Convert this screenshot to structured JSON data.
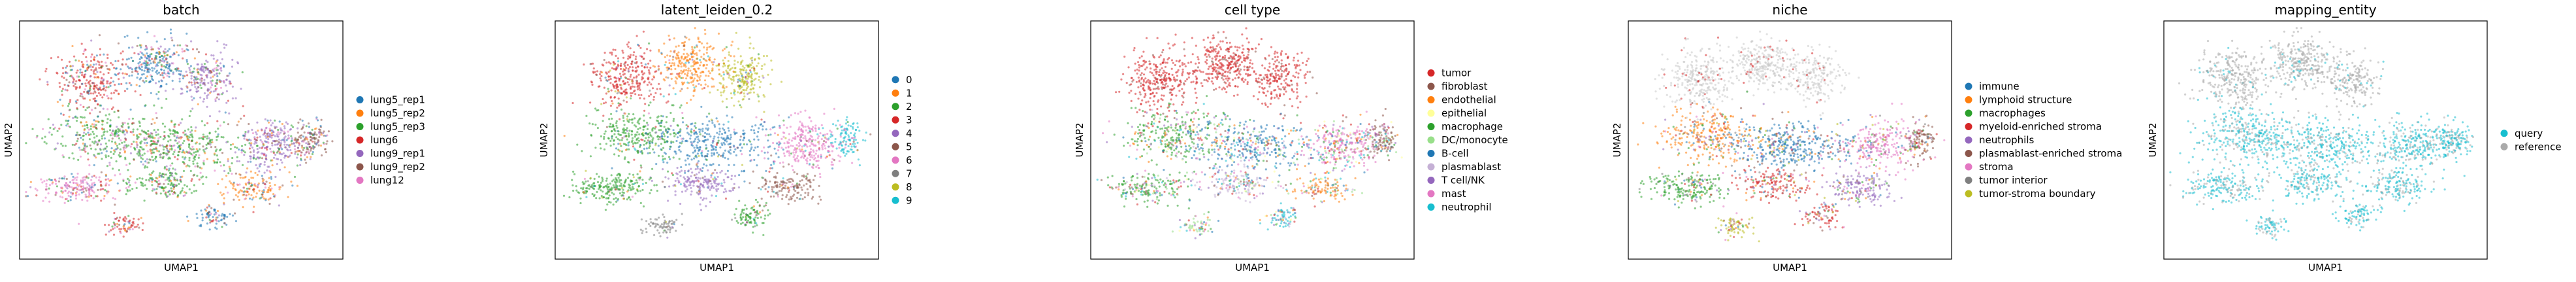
{
  "figure": {
    "marker_color_other": "#c8c8c8",
    "panels": [
      {
        "id": "batch",
        "title": "batch",
        "xlabel": "UMAP1",
        "ylabel": "UMAP2",
        "legend": [
          {
            "label": "lung5_rep1",
            "color": "#1f77b4"
          },
          {
            "label": "lung5_rep2",
            "color": "#ff7f0e"
          },
          {
            "label": "lung5_rep3",
            "color": "#2ca02c"
          },
          {
            "label": "lung6",
            "color": "#d62728"
          },
          {
            "label": "lung9_rep1",
            "color": "#9467bd"
          },
          {
            "label": "lung9_rep2",
            "color": "#8c564b"
          },
          {
            "label": "lung12",
            "color": "#e377c2"
          }
        ]
      },
      {
        "id": "latent_leiden",
        "title": "latent_leiden_0.2",
        "xlabel": "UMAP1",
        "ylabel": "UMAP2",
        "legend": [
          {
            "label": "0",
            "color": "#1f77b4"
          },
          {
            "label": "1",
            "color": "#ff7f0e"
          },
          {
            "label": "2",
            "color": "#2ca02c"
          },
          {
            "label": "3",
            "color": "#d62728"
          },
          {
            "label": "4",
            "color": "#9467bd"
          },
          {
            "label": "5",
            "color": "#8c564b"
          },
          {
            "label": "6",
            "color": "#e377c2"
          },
          {
            "label": "7",
            "color": "#7f7f7f"
          },
          {
            "label": "8",
            "color": "#bcbd22"
          },
          {
            "label": "9",
            "color": "#17becf"
          }
        ]
      },
      {
        "id": "cell_type",
        "title": "cell type",
        "xlabel": "UMAP1",
        "ylabel": "UMAP2",
        "legend": [
          {
            "label": "tumor",
            "color": "#d62728"
          },
          {
            "label": "fibroblast",
            "color": "#8c564b"
          },
          {
            "label": "endothelial",
            "color": "#ff7f0e"
          },
          {
            "label": "epithelial",
            "color": "#ffff99"
          },
          {
            "label": "macrophage",
            "color": "#2ca02c"
          },
          {
            "label": "DC/monocyte",
            "color": "#98df8a"
          },
          {
            "label": "B-cell",
            "color": "#1f77b4"
          },
          {
            "label": "plasmablast",
            "color": "#c5b0d5"
          },
          {
            "label": "T cell/NK",
            "color": "#9467bd"
          },
          {
            "label": "mast",
            "color": "#e377c2"
          },
          {
            "label": "neutrophil",
            "color": "#17becf"
          }
        ]
      },
      {
        "id": "niche",
        "title": "niche",
        "xlabel": "UMAP1",
        "ylabel": "UMAP2",
        "legend": [
          {
            "label": "immune",
            "color": "#1f77b4"
          },
          {
            "label": "lymphoid structure",
            "color": "#ff7f0e"
          },
          {
            "label": "macrophages",
            "color": "#2ca02c"
          },
          {
            "label": "myeloid-enriched stroma",
            "color": "#d62728"
          },
          {
            "label": "neutrophils",
            "color": "#9467bd"
          },
          {
            "label": "plasmablast-enriched stroma",
            "color": "#8c564b"
          },
          {
            "label": "stroma",
            "color": "#e377c2"
          },
          {
            "label": "tumor interior",
            "color": "#7f7f7f"
          },
          {
            "label": "tumor-stroma boundary",
            "color": "#bcbd22"
          }
        ]
      },
      {
        "id": "mapping_entity",
        "title": "mapping_entity",
        "xlabel": "UMAP1",
        "ylabel": "UMAP2",
        "legend": [
          {
            "label": "query",
            "color": "#17becf"
          },
          {
            "label": "reference",
            "color": "#aaaaaa"
          }
        ]
      }
    ]
  },
  "chart_data": [
    {
      "type": "scatter",
      "title": "batch",
      "xlabel": "UMAP1",
      "ylabel": "UMAP2",
      "legend_placement": "right",
      "grid": false,
      "series": [
        {
          "name": "lung5_rep1"
        },
        {
          "name": "lung5_rep2"
        },
        {
          "name": "lung5_rep3"
        },
        {
          "name": "lung6"
        },
        {
          "name": "lung9_rep1"
        },
        {
          "name": "lung9_rep2"
        },
        {
          "name": "lung12"
        }
      ]
    },
    {
      "type": "scatter",
      "title": "latent_leiden_0.2",
      "xlabel": "UMAP1",
      "ylabel": "UMAP2",
      "legend_placement": "right",
      "grid": false,
      "series": [
        {
          "name": "0"
        },
        {
          "name": "1"
        },
        {
          "name": "2"
        },
        {
          "name": "3"
        },
        {
          "name": "4"
        },
        {
          "name": "5"
        },
        {
          "name": "6"
        },
        {
          "name": "7"
        },
        {
          "name": "8"
        },
        {
          "name": "9"
        }
      ]
    },
    {
      "type": "scatter",
      "title": "cell type",
      "xlabel": "UMAP1",
      "ylabel": "UMAP2",
      "legend_placement": "right",
      "grid": false,
      "series": [
        {
          "name": "tumor"
        },
        {
          "name": "fibroblast"
        },
        {
          "name": "endothelial"
        },
        {
          "name": "epithelial"
        },
        {
          "name": "macrophage"
        },
        {
          "name": "DC/monocyte"
        },
        {
          "name": "B-cell"
        },
        {
          "name": "plasmablast"
        },
        {
          "name": "T cell/NK"
        },
        {
          "name": "mast"
        },
        {
          "name": "neutrophil"
        }
      ]
    },
    {
      "type": "scatter",
      "title": "niche",
      "xlabel": "UMAP1",
      "ylabel": "UMAP2",
      "legend_placement": "right",
      "grid": false,
      "series": [
        {
          "name": "immune"
        },
        {
          "name": "lymphoid structure"
        },
        {
          "name": "macrophages"
        },
        {
          "name": "myeloid-enriched stroma"
        },
        {
          "name": "neutrophils"
        },
        {
          "name": "plasmablast-enriched stroma"
        },
        {
          "name": "stroma"
        },
        {
          "name": "tumor interior"
        },
        {
          "name": "tumor-stroma boundary"
        }
      ]
    },
    {
      "type": "scatter",
      "title": "mapping_entity",
      "xlabel": "UMAP1",
      "ylabel": "UMAP2",
      "legend_placement": "right",
      "grid": false,
      "series": [
        {
          "name": "query"
        },
        {
          "name": "reference"
        }
      ]
    }
  ]
}
